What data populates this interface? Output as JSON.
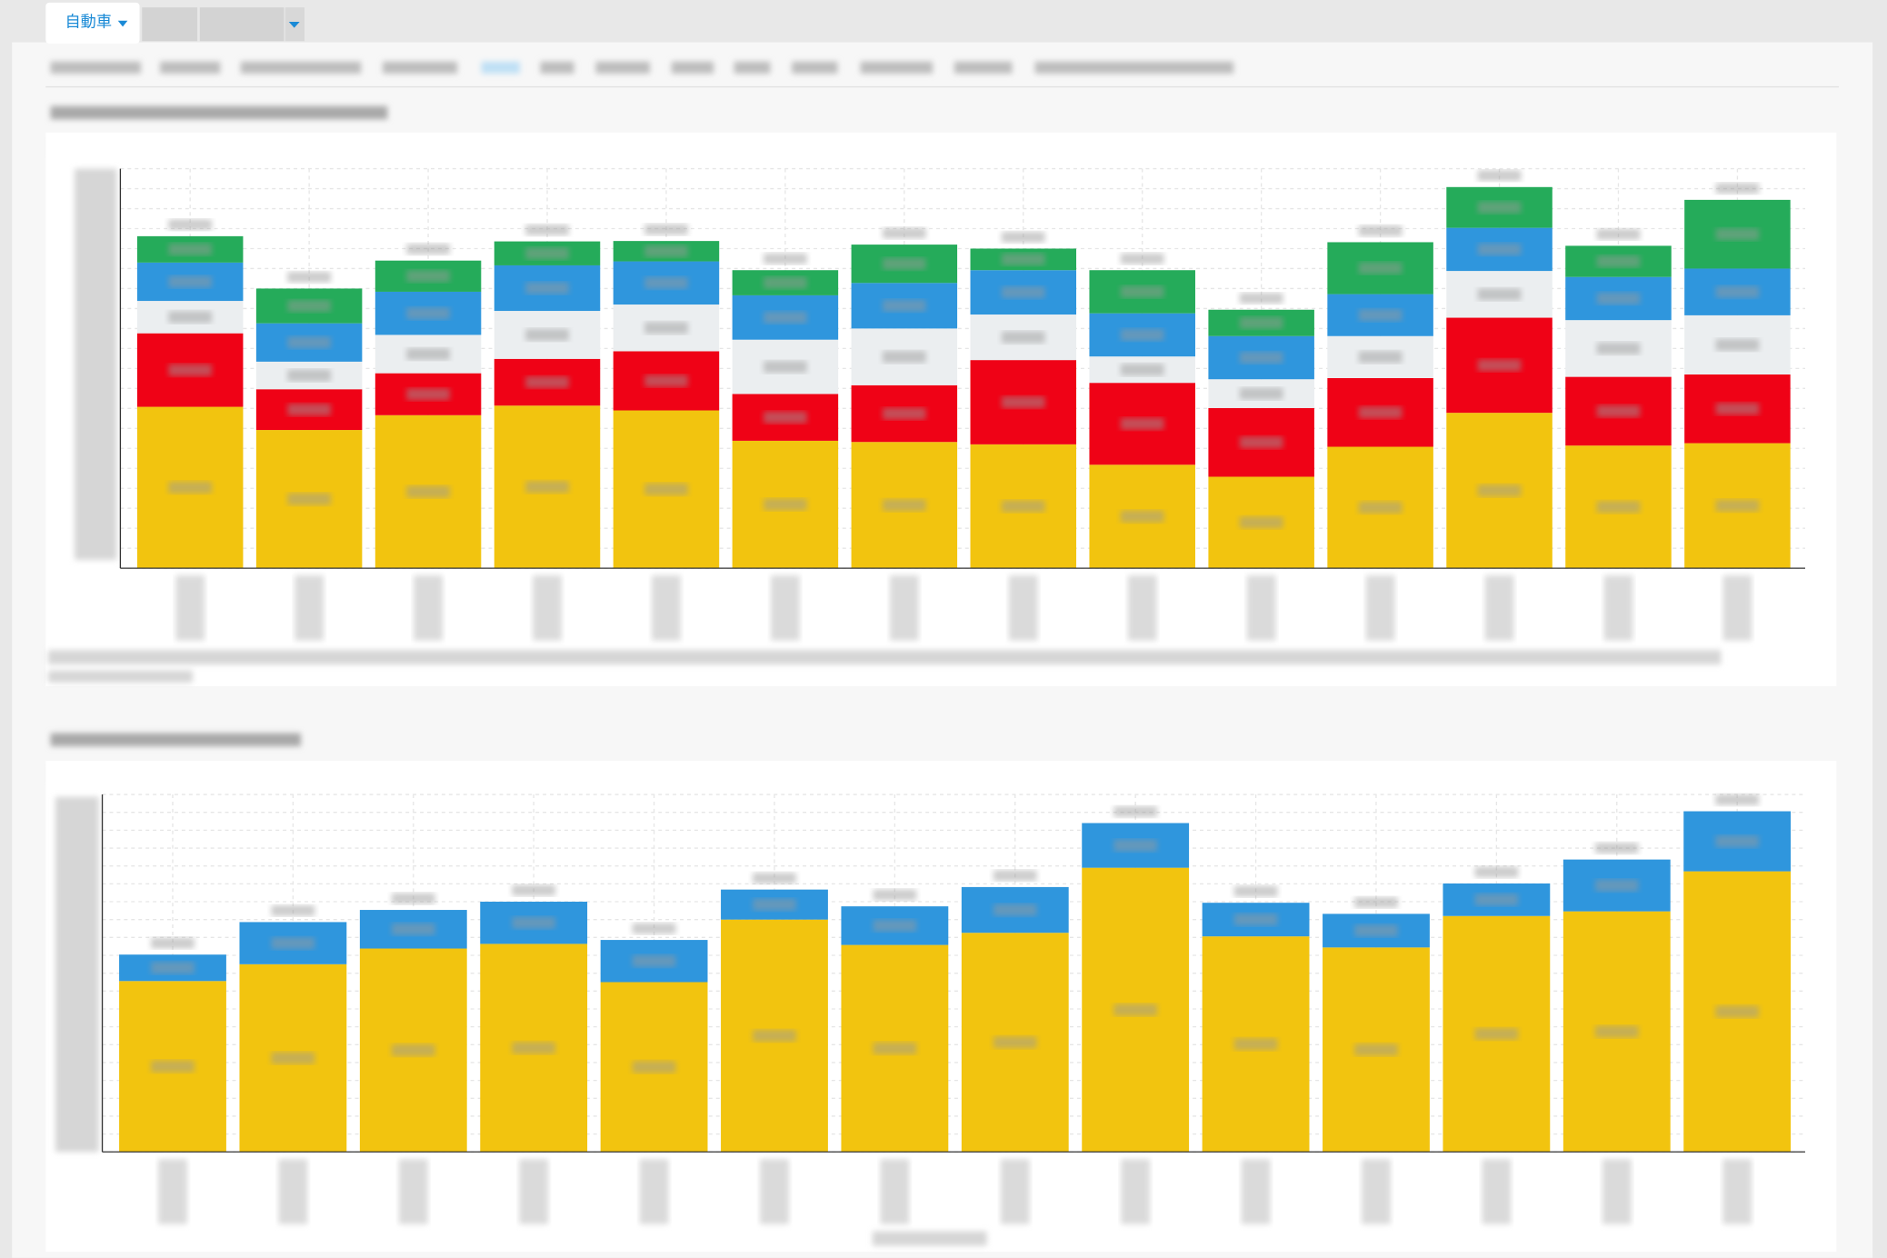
{
  "tab": "自動車",
  "chart_data": [
    {
      "type": "bar",
      "stacked": true,
      "grid": true,
      "ylim": [
        0,
        100
      ],
      "categories": [
        null,
        null,
        null,
        null,
        null,
        null,
        null,
        null,
        null,
        null,
        null,
        null,
        null,
        null
      ],
      "series": [
        {
          "color": "#f2c40f",
          "values": [
            40.4,
            34.6,
            38.3,
            40.7,
            39.5,
            31.9,
            31.6,
            31.0,
            25.9,
            22.9,
            30.4,
            38.9,
            30.7,
            31.3
          ]
        },
        {
          "color": "#ef0216",
          "values": [
            18.4,
            10.2,
            10.5,
            11.7,
            14.8,
            11.7,
            14.2,
            21.1,
            20.5,
            17.2,
            17.2,
            23.8,
            17.2,
            17.2
          ]
        },
        {
          "color": "#ebeef0",
          "values": [
            8.1,
            6.9,
            9.6,
            12.0,
            11.7,
            13.6,
            14.2,
            11.4,
            6.6,
            7.2,
            10.5,
            11.7,
            14.2,
            14.8
          ]
        },
        {
          "color": "#2f96dd",
          "values": [
            9.6,
            9.6,
            10.8,
            11.4,
            10.8,
            11.1,
            11.4,
            11.1,
            10.8,
            10.8,
            10.5,
            10.8,
            10.8,
            11.7
          ]
        },
        {
          "color": "#25ab5a",
          "values": [
            6.6,
            8.7,
            7.8,
            6.0,
            5.1,
            6.3,
            9.6,
            5.4,
            10.8,
            6.6,
            13.0,
            10.2,
            7.8,
            17.2
          ]
        }
      ]
    },
    {
      "type": "bar",
      "stacked": true,
      "grid": true,
      "ylim": [
        0,
        100
      ],
      "categories": [
        null,
        null,
        null,
        null,
        null,
        null,
        null,
        null,
        null,
        null,
        null,
        null,
        null,
        null
      ],
      "series": [
        {
          "color": "#f2c40f",
          "values": [
            47.8,
            52.5,
            56.9,
            58.2,
            47.5,
            65.0,
            57.9,
            61.3,
            79.5,
            60.3,
            57.2,
            66.0,
            67.3,
            78.5
          ]
        },
        {
          "color": "#2f96dd",
          "values": [
            7.4,
            11.8,
            10.8,
            11.8,
            11.8,
            8.4,
            10.8,
            12.8,
            12.5,
            9.4,
            9.4,
            9.1,
            14.5,
            16.8
          ]
        }
      ]
    }
  ]
}
